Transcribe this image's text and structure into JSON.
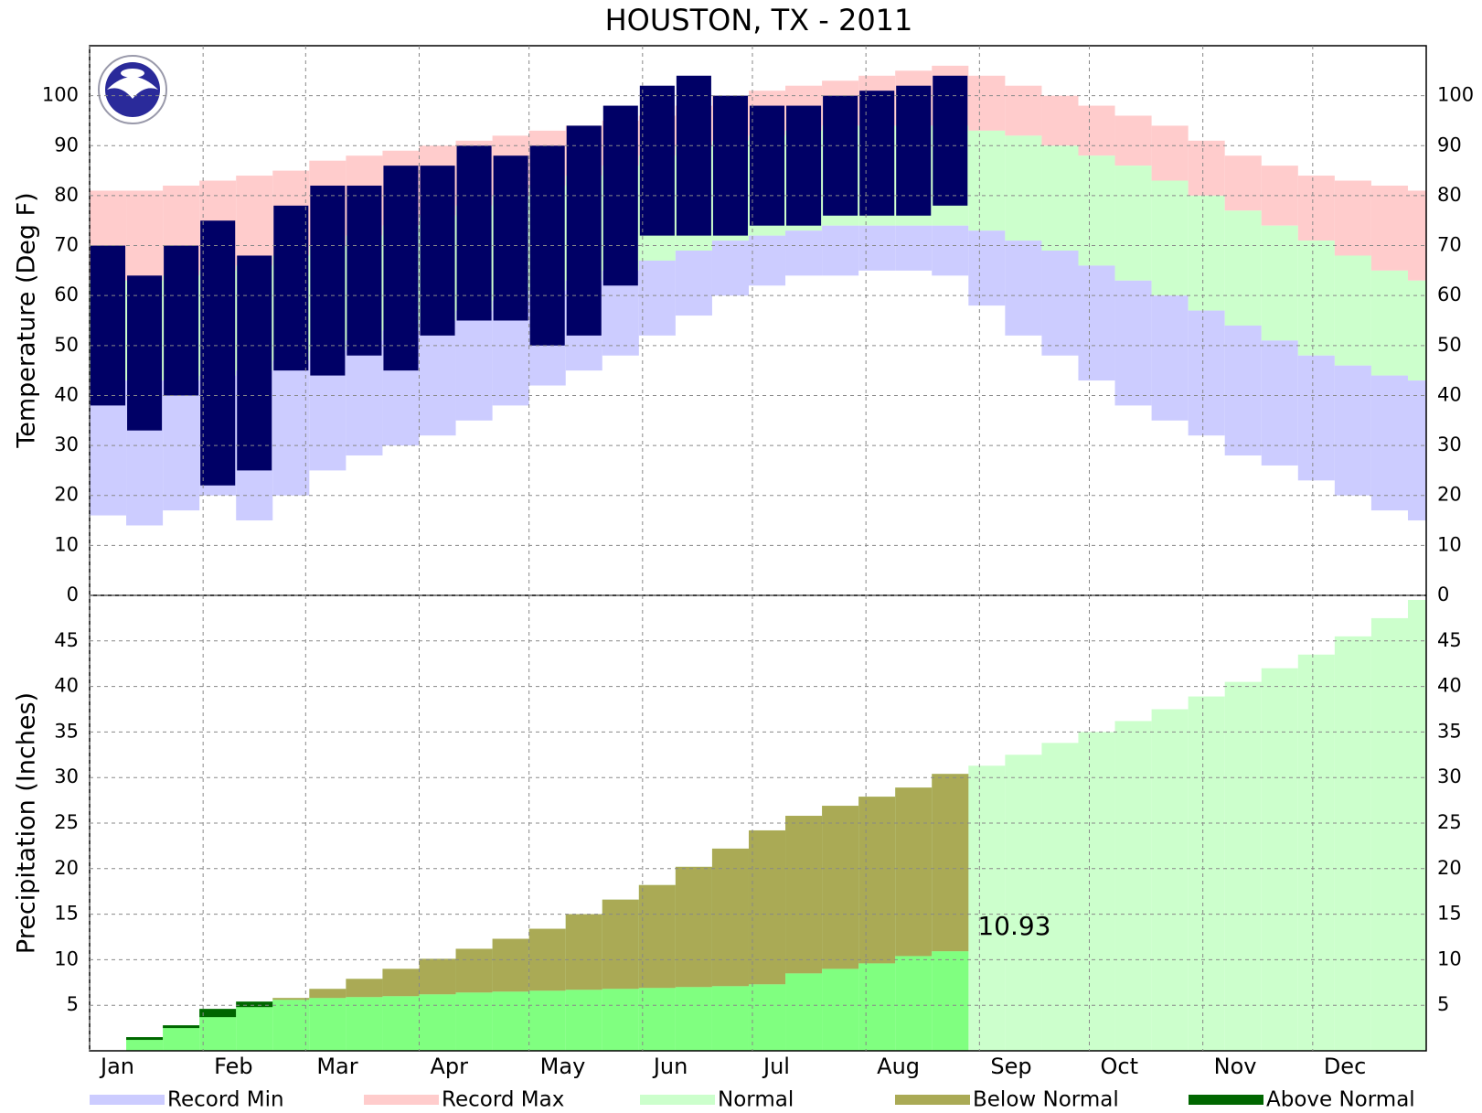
{
  "title": "HOUSTON, TX - 2011",
  "chart_data": [
    {
      "type": "range",
      "ylabel": "Temperature (Deg F)",
      "x": [
        0,
        10,
        20,
        30,
        40,
        50,
        60,
        70,
        80,
        90,
        100,
        110,
        120,
        130,
        140,
        150,
        160,
        170,
        180,
        190,
        200,
        210,
        220,
        230,
        240,
        250,
        260,
        270,
        280,
        290,
        300,
        310,
        320,
        330,
        340,
        350,
        360
      ],
      "xlim": [
        0,
        365
      ],
      "ylim": [
        0,
        110
      ],
      "yticks": [
        0,
        10,
        20,
        30,
        40,
        50,
        60,
        70,
        80,
        90,
        100
      ],
      "grid": true,
      "series": [
        {
          "name": "Record Min",
          "color": "#ccccff",
          "values": [
            16,
            14,
            17,
            20,
            15,
            20,
            25,
            28,
            30,
            32,
            35,
            38,
            42,
            45,
            48,
            52,
            56,
            60,
            62,
            64,
            64,
            65,
            65,
            64,
            58,
            52,
            48,
            43,
            38,
            35,
            32,
            28,
            26,
            23,
            20,
            17,
            15
          ]
        },
        {
          "name": "Record Max",
          "color": "#ffcccc",
          "values": [
            81,
            81,
            82,
            83,
            84,
            85,
            87,
            88,
            89,
            90,
            91,
            92,
            93,
            94,
            95,
            96,
            98,
            100,
            101,
            102,
            103,
            104,
            105,
            106,
            104,
            102,
            100,
            98,
            96,
            94,
            91,
            88,
            86,
            84,
            83,
            82,
            81
          ]
        },
        {
          "name": "Normal",
          "color": "#ccffcc",
          "high": [
            63,
            63,
            64,
            65,
            66,
            68,
            70,
            72,
            74,
            76,
            78,
            80,
            82,
            84,
            86,
            88,
            90,
            91,
            92,
            93,
            94,
            94,
            94,
            94,
            93,
            92,
            90,
            88,
            86,
            83,
            80,
            77,
            74,
            71,
            68,
            65,
            63
          ],
          "low": [
            43,
            43,
            43,
            44,
            45,
            47,
            49,
            51,
            53,
            55,
            57,
            59,
            61,
            63,
            65,
            67,
            69,
            71,
            72,
            73,
            74,
            74,
            74,
            74,
            73,
            71,
            69,
            66,
            63,
            60,
            57,
            54,
            51,
            48,
            46,
            44,
            43
          ]
        },
        {
          "color": "#000066",
          "high": [
            70,
            64,
            70,
            75,
            68,
            78,
            82,
            82,
            86,
            86,
            90,
            88,
            90,
            94,
            98,
            102,
            104,
            100,
            98,
            98,
            100,
            101,
            102,
            104,
            null,
            null,
            null,
            null,
            null,
            null,
            null,
            null,
            null,
            null,
            null,
            null,
            null
          ],
          "low": [
            38,
            33,
            40,
            22,
            25,
            45,
            44,
            48,
            45,
            52,
            55,
            55,
            50,
            52,
            62,
            72,
            72,
            72,
            74,
            74,
            76,
            76,
            76,
            78,
            null,
            null,
            null,
            null,
            null,
            null,
            null,
            null,
            null,
            null,
            null,
            null,
            null
          ]
        }
      ]
    },
    {
      "type": "bar",
      "ylabel": "Precipitation (Inches)",
      "x": [
        0,
        10,
        20,
        30,
        40,
        50,
        60,
        70,
        80,
        90,
        100,
        110,
        120,
        130,
        140,
        150,
        160,
        170,
        180,
        190,
        200,
        210,
        220,
        230,
        240,
        250,
        260,
        270,
        280,
        290,
        300,
        310,
        320,
        330,
        340,
        350,
        360
      ],
      "xlim": [
        0,
        365
      ],
      "ylim": [
        0,
        50
      ],
      "yticks": [
        5,
        10,
        15,
        20,
        25,
        30,
        35,
        40,
        45
      ],
      "grid": true,
      "xticks": [
        {
          "value": 0,
          "label": "Jan"
        },
        {
          "value": 31,
          "label": "Feb"
        },
        {
          "value": 59,
          "label": "Mar"
        },
        {
          "value": 90,
          "label": "Apr"
        },
        {
          "value": 120,
          "label": "May"
        },
        {
          "value": 151,
          "label": "Jun"
        },
        {
          "value": 181,
          "label": "Jul"
        },
        {
          "value": 212,
          "label": "Aug"
        },
        {
          "value": 243,
          "label": "Sep"
        },
        {
          "value": 273,
          "label": "Oct"
        },
        {
          "value": 304,
          "label": "Nov"
        },
        {
          "value": 334,
          "label": "Dec"
        }
      ],
      "series": [
        {
          "color": "#ccffcc",
          "values": [
            0,
            1.2,
            2.5,
            3.7,
            4.8,
            5.8,
            6.8,
            7.9,
            9.0,
            10.1,
            11.2,
            12.3,
            13.4,
            15.0,
            16.6,
            18.2,
            20.2,
            22.2,
            24.2,
            25.8,
            26.9,
            27.9,
            28.9,
            30.4,
            31.3,
            32.5,
            33.8,
            35.0,
            36.2,
            37.5,
            38.9,
            40.5,
            42.0,
            43.5,
            45.5,
            47.5,
            49.5
          ]
        },
        {
          "color": "#80ff80",
          "values": [
            0,
            1.5,
            2.8,
            4.6,
            5.4,
            5.6,
            5.8,
            5.9,
            6.0,
            6.2,
            6.4,
            6.5,
            6.6,
            6.7,
            6.8,
            6.9,
            7.0,
            7.1,
            7.3,
            8.5,
            9.0,
            9.6,
            10.4,
            10.93,
            null,
            null,
            null,
            null,
            null,
            null,
            null,
            null,
            null,
            null,
            null,
            null,
            null
          ]
        }
      ],
      "fills": [
        {
          "name": "Below Normal",
          "color": "#aaaa55"
        },
        {
          "name": "Above Normal",
          "color": "#006600"
        }
      ]
    }
  ]
}
